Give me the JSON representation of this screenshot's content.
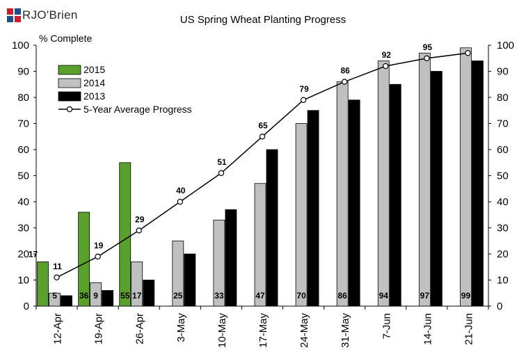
{
  "brand": {
    "logo_text": "RJO'Brien"
  },
  "chart_data": {
    "type": "bar",
    "title": "US Spring Wheat Planting Progress",
    "ylabel": "% Complete",
    "xlabel": "",
    "ylim": [
      0,
      100
    ],
    "yticks": [
      0,
      10,
      20,
      30,
      40,
      50,
      60,
      70,
      80,
      90,
      100
    ],
    "categories": [
      "12-Apr",
      "19-Apr",
      "26-Apr",
      "3-May",
      "10-May",
      "17-May",
      "24-May",
      "31-May",
      "7-Jun",
      "14-Jun",
      "21-Jun"
    ],
    "series": [
      {
        "name": "2015",
        "type": "bar",
        "color": "#5aa02c",
        "values": [
          17,
          36,
          55,
          null,
          null,
          null,
          null,
          null,
          null,
          null,
          null
        ],
        "labels": [
          "17",
          "36",
          "55",
          null,
          null,
          null,
          null,
          null,
          null,
          null,
          null
        ]
      },
      {
        "name": "2014",
        "type": "bar",
        "color": "#c0c0c0",
        "values": [
          5,
          9,
          17,
          25,
          33,
          47,
          70,
          86,
          94,
          97,
          99
        ],
        "labels": [
          "5",
          "9",
          "17",
          "25",
          "33",
          "47",
          "70",
          "86",
          "94",
          "97",
          "99"
        ]
      },
      {
        "name": "2013",
        "type": "bar",
        "color": "#000000",
        "values": [
          4,
          6,
          10,
          20,
          37,
          60,
          75,
          79,
          85,
          90,
          94
        ]
      },
      {
        "name": "5-Year Average Progress",
        "type": "line",
        "color": "#000000",
        "values": [
          11,
          19,
          29,
          40,
          51,
          65,
          79,
          86,
          92,
          95,
          97
        ],
        "labels": [
          "11",
          "19",
          "29",
          "40",
          "51",
          "65",
          "79",
          "86",
          "92",
          "95",
          null
        ]
      }
    ],
    "grid": false,
    "legend_position": "top-left",
    "secondary_axis": "right (same scale)"
  }
}
